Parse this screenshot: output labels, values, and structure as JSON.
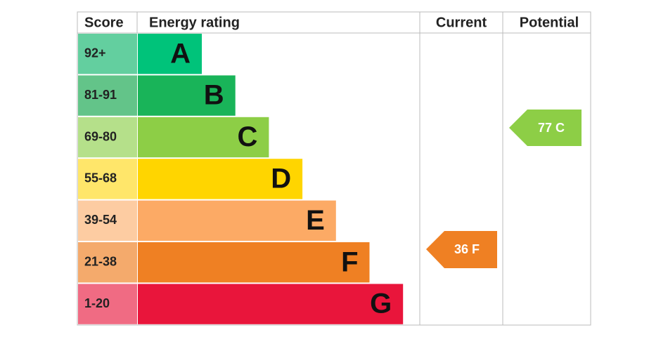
{
  "header": {
    "score": "Score",
    "rating": "Energy rating",
    "current": "Current",
    "potential": "Potential"
  },
  "bands": [
    {
      "score": "92+",
      "letter": "A",
      "color": "#00c37a",
      "light": "#63cf9f"
    },
    {
      "score": "81-91",
      "letter": "B",
      "color": "#19b459",
      "light": "#63c489"
    },
    {
      "score": "69-80",
      "letter": "C",
      "color": "#8dce46",
      "light": "#b5e08a"
    },
    {
      "score": "55-68",
      "letter": "D",
      "color": "#ffd500",
      "light": "#ffe66a"
    },
    {
      "score": "39-54",
      "letter": "E",
      "color": "#fcaa65",
      "light": "#fdcca2"
    },
    {
      "score": "21-38",
      "letter": "F",
      "color": "#ef8023",
      "light": "#f4aa6c"
    },
    {
      "score": "1-20",
      "letter": "G",
      "color": "#e9153b",
      "light": "#f06b83"
    }
  ],
  "current": {
    "label": "36 F",
    "color": "#ef8023"
  },
  "potential": {
    "label": "77 C",
    "color": "#8dce46"
  }
}
